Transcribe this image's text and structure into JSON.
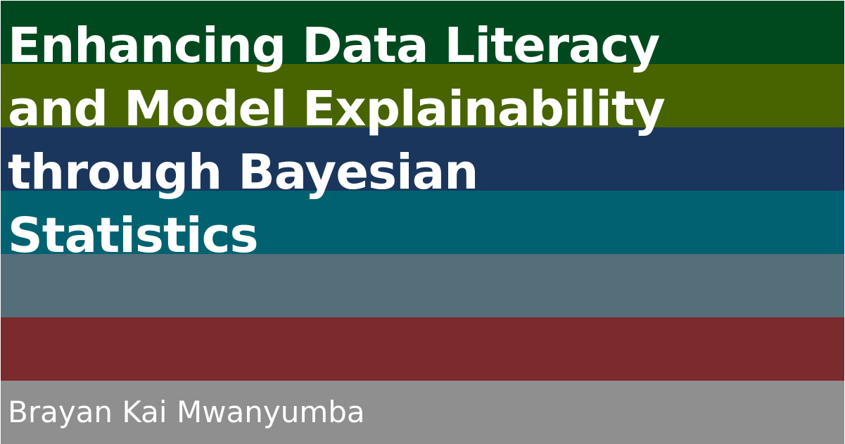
{
  "title_lines": [
    "Enhancing Data Literacy",
    "and Model Explainability",
    "through Bayesian",
    "Statistics"
  ],
  "author": "Brayan Kai Mwanyumba",
  "stripe_colors": [
    "#00491e",
    "#486400",
    "#1b365d",
    "#006271",
    "#546e7a",
    "#7b2a2e",
    "#8f8f8f"
  ]
}
